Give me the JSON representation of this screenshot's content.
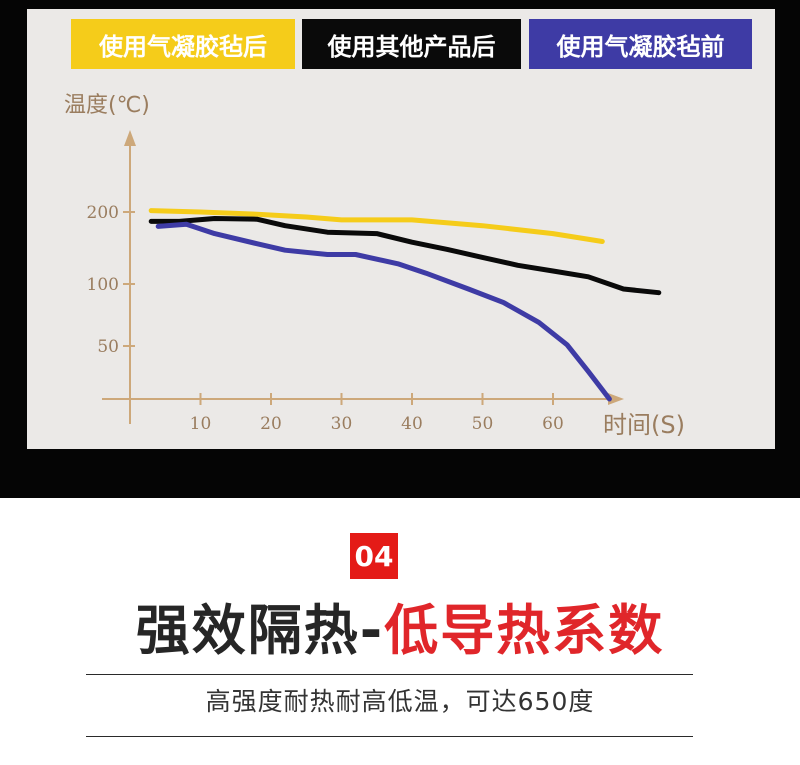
{
  "legend": [
    {
      "label": "使用气凝胶毡后",
      "color": "#f5cc1a"
    },
    {
      "label": "使用其他产品后",
      "color": "#0a0a0a"
    },
    {
      "label": "使用气凝胶毡前",
      "color": "#3e3ba5"
    }
  ],
  "section": {
    "number": "04",
    "title_dark": "强效隔热-",
    "title_red": "低导热系数",
    "subtitle": "高强度耐热耐高低温，可达650度"
  },
  "chart_data": {
    "type": "line",
    "title": "",
    "xlabel": "时间(S)",
    "ylabel": "温度(℃)",
    "x_ticks": [
      10,
      20,
      30,
      40,
      50,
      60
    ],
    "y_ticks": [
      50,
      100,
      200
    ],
    "series": [
      {
        "name": "使用气凝胶毡后",
        "color": "#f5cc1a",
        "x": [
          3,
          10,
          18,
          25,
          30,
          40,
          50,
          60,
          67
        ],
        "y": [
          202,
          200,
          197,
          193,
          189,
          189,
          181,
          170,
          159
        ]
      },
      {
        "name": "使用其他产品后",
        "color": "#0a0a0a",
        "x": [
          3,
          7,
          12,
          18,
          22,
          28,
          35,
          40,
          45,
          50,
          55,
          60,
          65,
          70,
          75
        ],
        "y": [
          187,
          187,
          191,
          190,
          181,
          172,
          170,
          158,
          148,
          137,
          126,
          118,
          110,
          96,
          93
        ]
      },
      {
        "name": "使用气凝胶毡前",
        "color": "#3e3ba5",
        "x": [
          4,
          8,
          12,
          18,
          22,
          28,
          32,
          38,
          42,
          48,
          53,
          58,
          62,
          65,
          68
        ],
        "y": [
          180,
          183,
          170,
          156,
          147,
          141,
          141,
          128,
          115,
          96,
          85,
          69,
          51,
          26,
          0
        ]
      }
    ]
  }
}
